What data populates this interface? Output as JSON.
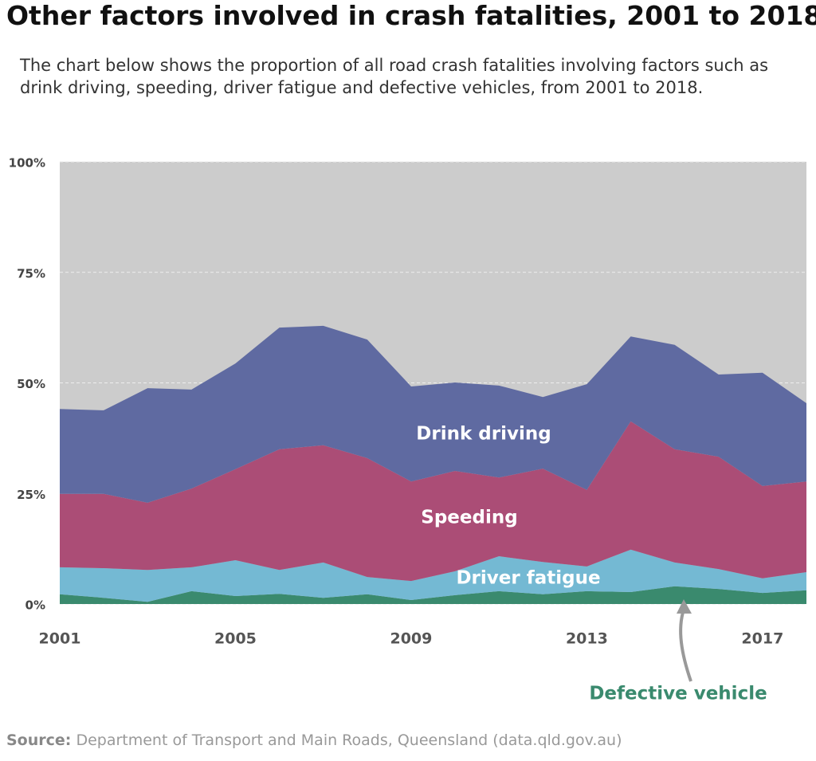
{
  "chart_data": {
    "type": "area",
    "title": "Other factors involved in crash fatalities, 2001 to 2018",
    "subtitle": "The chart below shows the proportion of all road crash fatalities involving factors such as drink driving, speeding, driver fatigue and defective vehicles, from 2001 to 2018.",
    "source_label": "Source:",
    "source": "Department of Transport and Main Roads, Queensland (data.qld.gov.au)",
    "stacked": true,
    "x": [
      2001,
      2002,
      2003,
      2004,
      2005,
      2006,
      2007,
      2008,
      2009,
      2010,
      2011,
      2012,
      2013,
      2014,
      2015,
      2016,
      2017,
      2018
    ],
    "xlim": [
      2001,
      2018
    ],
    "xticks": [
      2001,
      2005,
      2009,
      2013,
      2017
    ],
    "ylim": [
      0,
      100
    ],
    "yticks": [
      {
        "value": 0,
        "label": "0%"
      },
      {
        "value": 25,
        "label": "25%"
      },
      {
        "value": 50,
        "label": "50%"
      },
      {
        "value": 75,
        "label": "75%"
      },
      {
        "value": 100,
        "label": "100%"
      }
    ],
    "grid": true,
    "series": [
      {
        "name": "Defective vehicle",
        "color": "#3a8a6e",
        "values": [
          2.2,
          1.4,
          0.5,
          2.9,
          1.8,
          2.3,
          1.4,
          2.2,
          0.9,
          2.0,
          2.9,
          2.2,
          2.9,
          2.7,
          4.0,
          3.4,
          2.5,
          3.1
        ]
      },
      {
        "name": "Driver fatigue",
        "color": "#74b9d3",
        "values": [
          6.1,
          6.7,
          7.2,
          5.4,
          8.1,
          5.4,
          8.0,
          3.9,
          4.3,
          5.4,
          7.9,
          7.3,
          5.6,
          9.6,
          5.4,
          4.5,
          3.3,
          4.1
        ]
      },
      {
        "name": "Speeding",
        "color": "#ab4d76",
        "values": [
          16.6,
          16.8,
          15.2,
          17.8,
          20.6,
          27.3,
          26.5,
          26.9,
          22.5,
          22.7,
          17.8,
          21.1,
          17.3,
          29.0,
          25.6,
          25.4,
          20.9,
          20.5
        ]
      },
      {
        "name": "Drink driving",
        "color": "#5f6aa1",
        "values": [
          19.2,
          18.9,
          25.9,
          22.4,
          23.9,
          27.5,
          27.0,
          26.8,
          21.5,
          20.0,
          20.8,
          16.2,
          23.9,
          19.2,
          23.6,
          18.6,
          25.6,
          17.7
        ]
      }
    ]
  }
}
